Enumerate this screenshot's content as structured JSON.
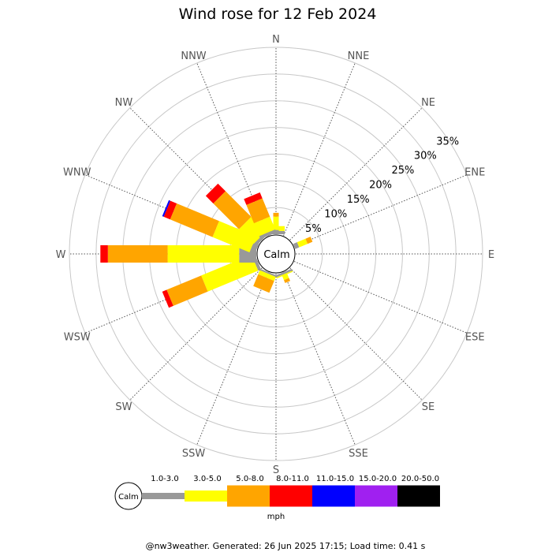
{
  "title": "Wind rose for 12 Feb 2024",
  "footer": "@nw3weather. Generated: 26 Jun 2025 17:15; Load time: 0.41 s",
  "chart_data": {
    "type": "wind-rose",
    "units": "mph",
    "calm_label": "Calm",
    "directions": [
      "N",
      "NNE",
      "NE",
      "ENE",
      "E",
      "ESE",
      "SE",
      "SSE",
      "S",
      "SSW",
      "SW",
      "WSW",
      "W",
      "WNW",
      "NW",
      "NNW"
    ],
    "radial_ticks": [
      "5%",
      "10%",
      "15%",
      "20%",
      "25%",
      "30%",
      "35%"
    ],
    "radial_max": 35,
    "speed_bins": [
      {
        "label": "1.0-3.0",
        "color": "#999999"
      },
      {
        "label": "3.0-5.0",
        "color": "#ffff00"
      },
      {
        "label": "5.0-8.0",
        "color": "#ffa500"
      },
      {
        "label": "8.0-11.0",
        "color": "#ff0000"
      },
      {
        "label": "11.0-15.0",
        "color": "#0000ff"
      },
      {
        "label": "15.0-20.0",
        "color": "#a020f0"
      },
      {
        "label": "20.0-50.0",
        "color": "#000000"
      }
    ],
    "frequencies": {
      "N": [
        0.6,
        0.9,
        0,
        0,
        0,
        0,
        0
      ],
      "NNE": [
        0,
        0,
        0,
        0,
        0,
        0,
        0
      ],
      "NE": [
        0,
        0,
        0,
        0,
        0,
        0,
        0
      ],
      "ENE": [
        0,
        0,
        0,
        0,
        0,
        0,
        0
      ],
      "E": [
        0,
        0,
        0,
        0,
        0,
        0,
        0
      ],
      "ESE": [
        0,
        0,
        0,
        0,
        0,
        0,
        0
      ],
      "SE": [
        0,
        0,
        0,
        0,
        0,
        0,
        0
      ],
      "SSE": [
        0.4,
        0.2,
        0,
        0,
        0,
        0,
        0
      ],
      "S": [
        0,
        0,
        0,
        0,
        0,
        0,
        0
      ],
      "SSW": [
        0.3,
        0.8,
        2.4,
        0,
        0,
        0,
        0
      ],
      "SW": [
        0,
        0,
        0,
        0,
        0,
        0,
        0
      ],
      "WSW": [
        0.6,
        10.2,
        7.0,
        0.9,
        0,
        0,
        0
      ],
      "W": [
        3.2,
        13.4,
        11.2,
        1.4,
        0,
        0,
        0
      ],
      "WNW": [
        1.0,
        7.5,
        8.6,
        1.3,
        0.3,
        0,
        0
      ],
      "NW": [
        0.6,
        3.9,
        6.8,
        2.0,
        0,
        0,
        0
      ],
      "NNW": [
        0.6,
        2.6,
        3.7,
        1.2,
        0,
        0,
        0
      ]
    },
    "bleeds": {
      "N": [
        0.8,
        2.5,
        0.7,
        0,
        0,
        0,
        0
      ],
      "NNE": [
        0,
        0,
        0,
        0,
        0,
        0,
        0
      ],
      "NE": [
        0,
        0,
        0,
        0,
        0,
        0,
        0
      ],
      "ENE": [
        0.8,
        1.7,
        1.0,
        0,
        0,
        0,
        0
      ],
      "E": [
        0,
        0,
        0,
        0,
        0,
        0,
        0
      ],
      "ESE": [
        0,
        0,
        0,
        0,
        0,
        0,
        0
      ],
      "SE": [
        0,
        0,
        0,
        0,
        0,
        0,
        0
      ],
      "SSE": [
        0.4,
        1.0,
        0.6,
        0,
        0,
        0,
        0
      ],
      "S": [
        0,
        0,
        0,
        0,
        0,
        0,
        0
      ],
      "SSW": [
        0,
        0,
        0,
        0,
        0,
        0,
        0
      ],
      "SW": [
        0,
        0,
        0,
        0,
        0,
        0,
        0
      ],
      "WSW": [
        0,
        0,
        0,
        0,
        0,
        0,
        0
      ],
      "W": [
        0,
        0,
        0,
        0,
        0,
        0,
        0
      ],
      "WNW": [
        0,
        0,
        0,
        0,
        0,
        0,
        0
      ],
      "NW": [
        0,
        0,
        0,
        0,
        0,
        0,
        0
      ],
      "NNW": [
        0,
        0,
        0,
        0,
        0,
        0,
        0
      ]
    },
    "grid": true
  }
}
